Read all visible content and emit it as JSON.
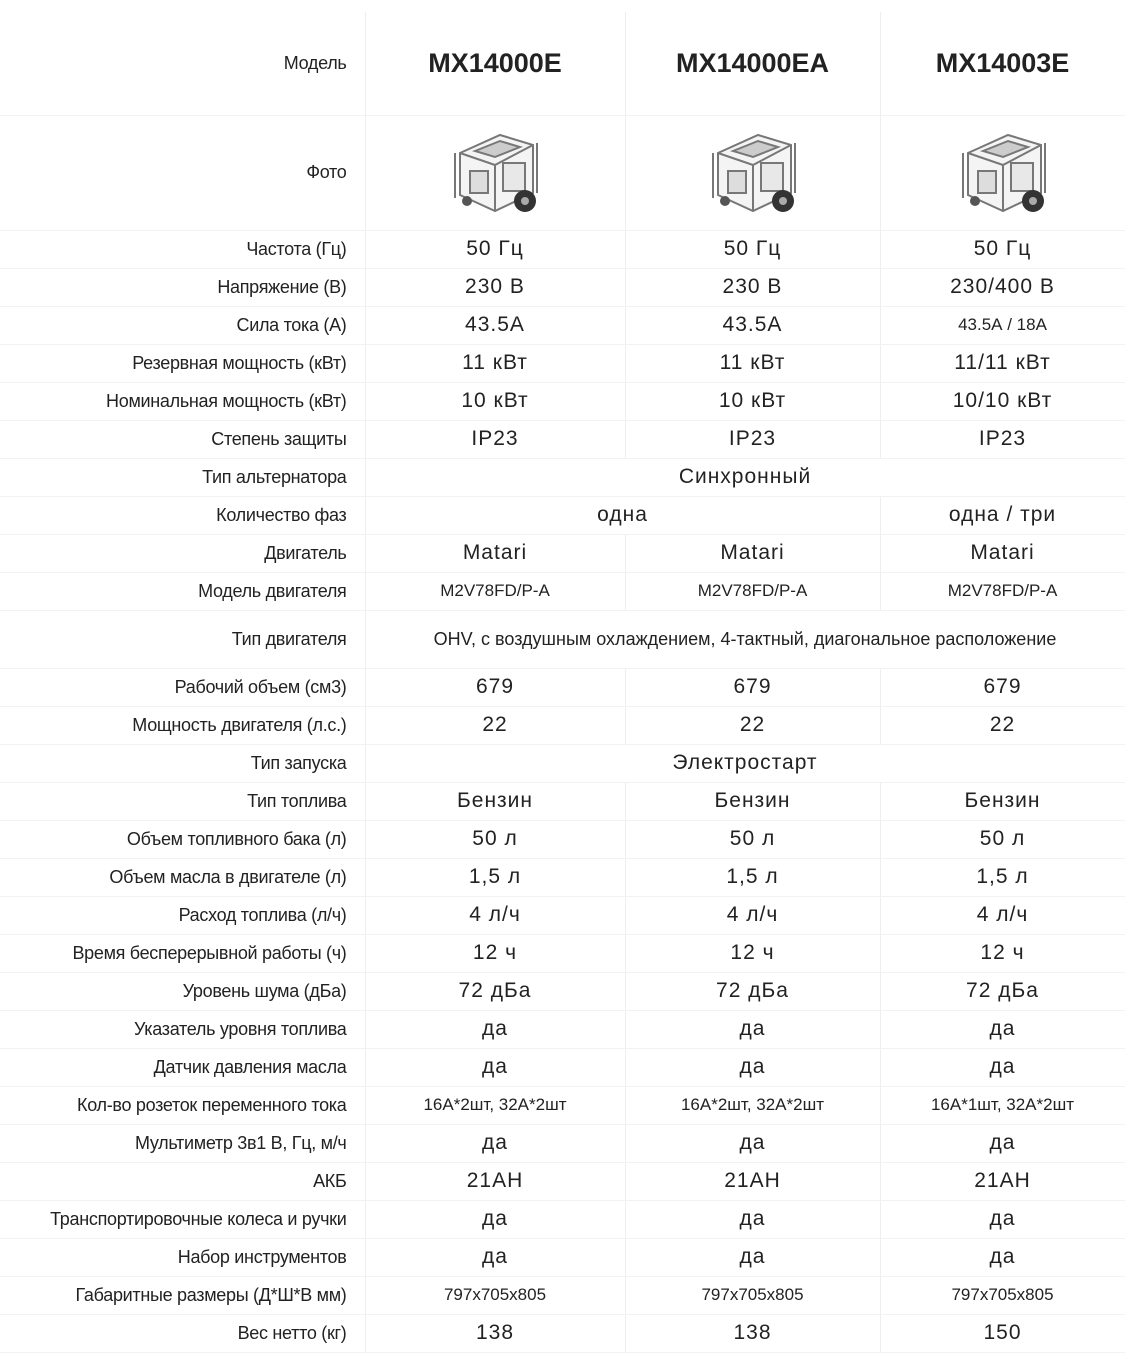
{
  "table": {
    "header": {
      "label": "Модель",
      "models": [
        "MX14000E",
        "MX14000EA",
        "MX14003E"
      ]
    },
    "photo_label": "Фото",
    "rows": [
      {
        "label": "Частота (Гц)",
        "cells": [
          "50 Гц",
          "50 Гц",
          "50 Гц"
        ]
      },
      {
        "label": "Напряжение (В)",
        "cells": [
          "230 В",
          "230 В",
          "230/400 В"
        ]
      },
      {
        "label": "Сила тока (А)",
        "cells": [
          "43.5А",
          "43.5А",
          "43.5А / 18А"
        ]
      },
      {
        "label": "Резервная мощность (кВт)",
        "cells": [
          "11 кВт",
          "11 кВт",
          "11/11 кВт"
        ]
      },
      {
        "label": "Номинальная мощность (кВт)",
        "cells": [
          "10 кВт",
          "10 кВт",
          "10/10 кВт"
        ]
      },
      {
        "label": "Степень защиты",
        "cells": [
          "IP23",
          "IP23",
          "IP23"
        ]
      },
      {
        "label": "Тип альтернатора",
        "cells": [
          "Синхронный"
        ]
      },
      {
        "label": "Количество фаз",
        "cells": [
          "одна",
          "одна / три"
        ]
      },
      {
        "label": "Двигатель",
        "cells": [
          "Matari",
          "Matari",
          "Matari"
        ]
      },
      {
        "label": "Модель двигателя",
        "cells": [
          "M2V78FD/P-A",
          "M2V78FD/P-A",
          "M2V78FD/P-A"
        ]
      },
      {
        "label": "Тип двигателя",
        "cells": [
          "OHV, с воздушным охлаждением, 4-тактный, диагональное расположение"
        ]
      },
      {
        "label": "Рабочий объем (см3)",
        "cells": [
          "679",
          "679",
          "679"
        ]
      },
      {
        "label": "Мощность двигателя (л.с.)",
        "cells": [
          "22",
          "22",
          "22"
        ]
      },
      {
        "label": "Тип запуска",
        "cells": [
          "Электростарт"
        ]
      },
      {
        "label": "Тип топлива",
        "cells": [
          "Бензин",
          "Бензин",
          "Бензин"
        ]
      },
      {
        "label": "Объем топливного бака (л)",
        "cells": [
          "50 л",
          "50 л",
          "50 л"
        ]
      },
      {
        "label": "Объем масла в двигателе (л)",
        "cells": [
          "1,5 л",
          "1,5 л",
          "1,5 л"
        ]
      },
      {
        "label": "Расход топлива (л/ч)",
        "cells": [
          "4 л/ч",
          "4 л/ч",
          "4 л/ч"
        ]
      },
      {
        "label": "Время бесперерывной работы (ч)",
        "cells": [
          "12 ч",
          "12 ч",
          "12 ч"
        ]
      },
      {
        "label": "Уровень шума (дБа)",
        "cells": [
          "72 дБа",
          "72 дБа",
          "72 дБа"
        ]
      },
      {
        "label": "Указатель уровня топлива",
        "cells": [
          "да",
          "да",
          "да"
        ]
      },
      {
        "label": "Датчик давления масла",
        "cells": [
          "да",
          "да",
          "да"
        ]
      },
      {
        "label": "Кол-во розеток переменного тока",
        "cells": [
          "16А*2шт, 32А*2шт",
          "16А*2шт, 32А*2шт",
          "16А*1шт, 32А*2шт"
        ]
      },
      {
        "label": "Мультиметр 3в1 В, Гц, м/ч",
        "cells": [
          "да",
          "да",
          "да"
        ]
      },
      {
        "label": "АКБ",
        "cells": [
          "21АН",
          "21АН",
          "21АН"
        ]
      },
      {
        "label": "Транспортировочные колеса и ручки",
        "cells": [
          "да",
          "да",
          "да"
        ]
      },
      {
        "label": "Набор инструментов",
        "cells": [
          "да",
          "да",
          "да"
        ]
      },
      {
        "label": "Габаритные размеры (Д*Ш*В мм)",
        "cells": [
          "797x705x805",
          "797x705x805",
          "797x705x805"
        ]
      },
      {
        "label": "Вес нетто (кг)",
        "cells": [
          "138",
          "138",
          "150"
        ]
      }
    ]
  }
}
